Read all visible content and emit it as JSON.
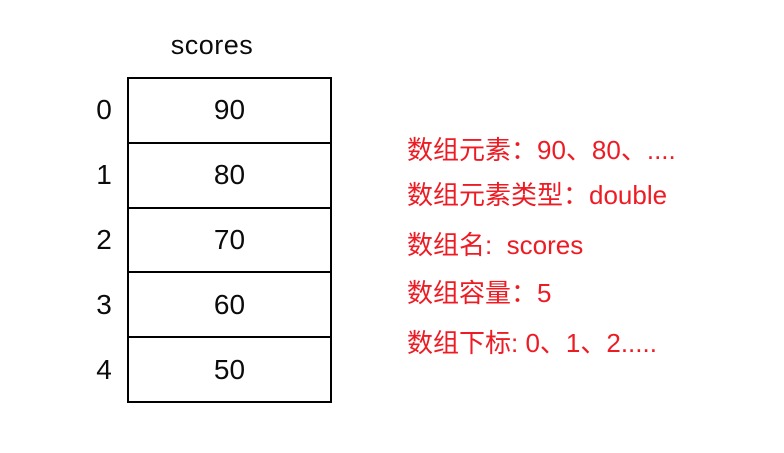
{
  "array": {
    "title": "scores",
    "values": [
      "90",
      "80",
      "70",
      "60",
      "50"
    ],
    "indices": [
      "0",
      "1",
      "2",
      "3",
      "4"
    ]
  },
  "annotations": {
    "text_color": "#ed1c24",
    "lines": [
      "数组元素：90、80、....",
      "数组元素类型：double",
      "数组名:  scores",
      "数组容量：5",
      "数组下标: 0、1、2....."
    ]
  },
  "colors": {
    "border": "#000000",
    "background": "#ffffff",
    "text": "#0b0b0b"
  }
}
